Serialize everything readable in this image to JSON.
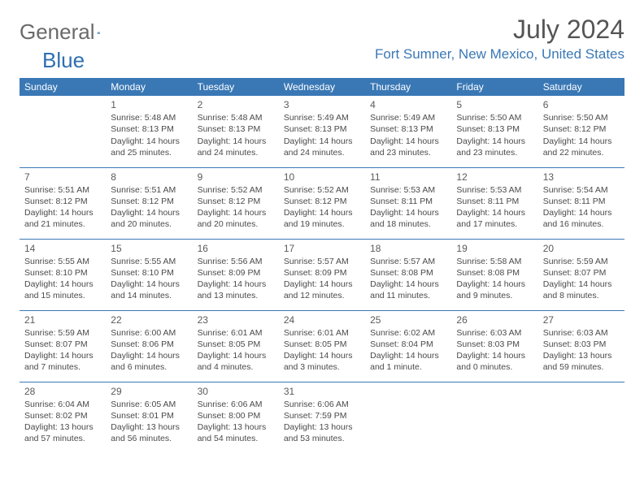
{
  "brand": {
    "part1": "General",
    "part2": "Blue"
  },
  "colors": {
    "header_bg": "#3a78b5",
    "text": "#4a4a4a",
    "brand_gray": "#6a6a6a",
    "brand_blue": "#2e6fb0"
  },
  "title": "July 2024",
  "location": "Fort Sumner, New Mexico, United States",
  "weekdays": [
    "Sunday",
    "Monday",
    "Tuesday",
    "Wednesday",
    "Thursday",
    "Friday",
    "Saturday"
  ],
  "start_offset": 1,
  "days": [
    {
      "n": "1",
      "sunrise": "5:48 AM",
      "sunset": "8:13 PM",
      "daylight": "14 hours and 25 minutes."
    },
    {
      "n": "2",
      "sunrise": "5:48 AM",
      "sunset": "8:13 PM",
      "daylight": "14 hours and 24 minutes."
    },
    {
      "n": "3",
      "sunrise": "5:49 AM",
      "sunset": "8:13 PM",
      "daylight": "14 hours and 24 minutes."
    },
    {
      "n": "4",
      "sunrise": "5:49 AM",
      "sunset": "8:13 PM",
      "daylight": "14 hours and 23 minutes."
    },
    {
      "n": "5",
      "sunrise": "5:50 AM",
      "sunset": "8:13 PM",
      "daylight": "14 hours and 23 minutes."
    },
    {
      "n": "6",
      "sunrise": "5:50 AM",
      "sunset": "8:12 PM",
      "daylight": "14 hours and 22 minutes."
    },
    {
      "n": "7",
      "sunrise": "5:51 AM",
      "sunset": "8:12 PM",
      "daylight": "14 hours and 21 minutes."
    },
    {
      "n": "8",
      "sunrise": "5:51 AM",
      "sunset": "8:12 PM",
      "daylight": "14 hours and 20 minutes."
    },
    {
      "n": "9",
      "sunrise": "5:52 AM",
      "sunset": "8:12 PM",
      "daylight": "14 hours and 20 minutes."
    },
    {
      "n": "10",
      "sunrise": "5:52 AM",
      "sunset": "8:12 PM",
      "daylight": "14 hours and 19 minutes."
    },
    {
      "n": "11",
      "sunrise": "5:53 AM",
      "sunset": "8:11 PM",
      "daylight": "14 hours and 18 minutes."
    },
    {
      "n": "12",
      "sunrise": "5:53 AM",
      "sunset": "8:11 PM",
      "daylight": "14 hours and 17 minutes."
    },
    {
      "n": "13",
      "sunrise": "5:54 AM",
      "sunset": "8:11 PM",
      "daylight": "14 hours and 16 minutes."
    },
    {
      "n": "14",
      "sunrise": "5:55 AM",
      "sunset": "8:10 PM",
      "daylight": "14 hours and 15 minutes."
    },
    {
      "n": "15",
      "sunrise": "5:55 AM",
      "sunset": "8:10 PM",
      "daylight": "14 hours and 14 minutes."
    },
    {
      "n": "16",
      "sunrise": "5:56 AM",
      "sunset": "8:09 PM",
      "daylight": "14 hours and 13 minutes."
    },
    {
      "n": "17",
      "sunrise": "5:57 AM",
      "sunset": "8:09 PM",
      "daylight": "14 hours and 12 minutes."
    },
    {
      "n": "18",
      "sunrise": "5:57 AM",
      "sunset": "8:08 PM",
      "daylight": "14 hours and 11 minutes."
    },
    {
      "n": "19",
      "sunrise": "5:58 AM",
      "sunset": "8:08 PM",
      "daylight": "14 hours and 9 minutes."
    },
    {
      "n": "20",
      "sunrise": "5:59 AM",
      "sunset": "8:07 PM",
      "daylight": "14 hours and 8 minutes."
    },
    {
      "n": "21",
      "sunrise": "5:59 AM",
      "sunset": "8:07 PM",
      "daylight": "14 hours and 7 minutes."
    },
    {
      "n": "22",
      "sunrise": "6:00 AM",
      "sunset": "8:06 PM",
      "daylight": "14 hours and 6 minutes."
    },
    {
      "n": "23",
      "sunrise": "6:01 AM",
      "sunset": "8:05 PM",
      "daylight": "14 hours and 4 minutes."
    },
    {
      "n": "24",
      "sunrise": "6:01 AM",
      "sunset": "8:05 PM",
      "daylight": "14 hours and 3 minutes."
    },
    {
      "n": "25",
      "sunrise": "6:02 AM",
      "sunset": "8:04 PM",
      "daylight": "14 hours and 1 minute."
    },
    {
      "n": "26",
      "sunrise": "6:03 AM",
      "sunset": "8:03 PM",
      "daylight": "14 hours and 0 minutes."
    },
    {
      "n": "27",
      "sunrise": "6:03 AM",
      "sunset": "8:03 PM",
      "daylight": "13 hours and 59 minutes."
    },
    {
      "n": "28",
      "sunrise": "6:04 AM",
      "sunset": "8:02 PM",
      "daylight": "13 hours and 57 minutes."
    },
    {
      "n": "29",
      "sunrise": "6:05 AM",
      "sunset": "8:01 PM",
      "daylight": "13 hours and 56 minutes."
    },
    {
      "n": "30",
      "sunrise": "6:06 AM",
      "sunset": "8:00 PM",
      "daylight": "13 hours and 54 minutes."
    },
    {
      "n": "31",
      "sunrise": "6:06 AM",
      "sunset": "7:59 PM",
      "daylight": "13 hours and 53 minutes."
    }
  ],
  "labels": {
    "sunrise": "Sunrise:",
    "sunset": "Sunset:",
    "daylight": "Daylight:"
  }
}
